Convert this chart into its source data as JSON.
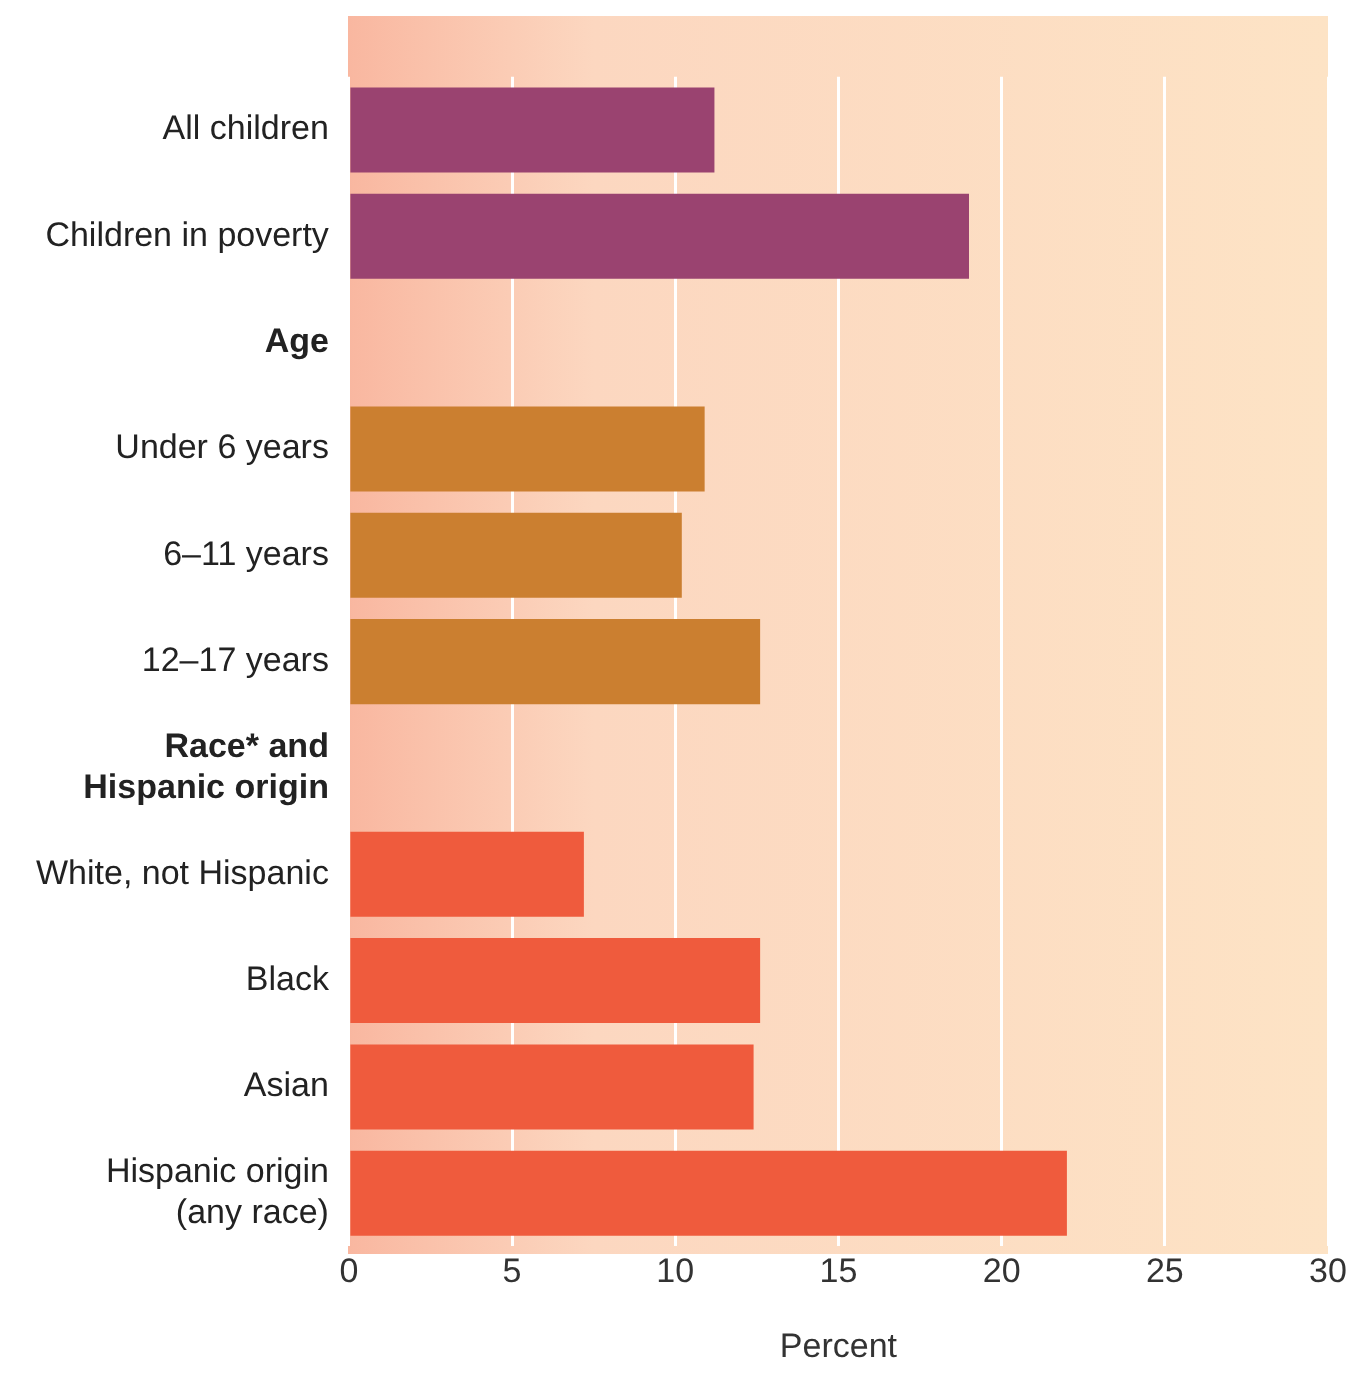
{
  "chart_data": {
    "type": "bar",
    "orientation": "horizontal",
    "xlabel": "Percent",
    "categories": [
      "All children",
      "Children in poverty",
      "Age",
      "Under 6 years",
      "6–11 years",
      "12–17 years",
      "Race* and\nHispanic origin",
      "White, not Hispanic",
      "Black",
      "Asian",
      "Hispanic origin\n(any race)"
    ],
    "values": [
      11.2,
      19.0,
      null,
      10.9,
      10.2,
      12.6,
      null,
      7.2,
      12.6,
      12.4,
      22.0
    ],
    "colors": [
      "#9a4370",
      "#9a4370",
      null,
      "#cb7f30",
      "#cb7f30",
      "#cb7f30",
      null,
      "#ef5b3d",
      "#ef5b3d",
      "#ef5b3d",
      "#ef5b3d"
    ],
    "xlim": [
      0,
      30
    ],
    "xticks": [
      0,
      5,
      10,
      15,
      20,
      25,
      30
    ],
    "grid": "x",
    "legend": false
  }
}
